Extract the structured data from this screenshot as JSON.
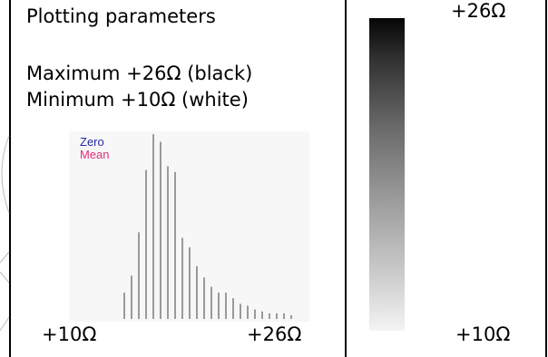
{
  "panel": {
    "title": "Plotting parameters",
    "maximum_line": "Maximum +26Ω (black)",
    "minimum_line": "Minimum +10Ω (white)"
  },
  "histogram": {
    "legend_zero": "Zero",
    "legend_mean": "Mean",
    "x_min_label": "+10Ω",
    "x_max_label": "+26Ω"
  },
  "colorbar": {
    "top_label": "+26Ω",
    "bottom_label": "+10Ω",
    "top_color": "#050505",
    "bottom_color": "#f4f4f4"
  },
  "chart_data": {
    "type": "bar",
    "x_range": [
      10,
      26
    ],
    "x_unit": "Ω",
    "values": [
      0.14,
      0.23,
      0.46,
      0.79,
      0.98,
      0.94,
      0.81,
      0.78,
      0.43,
      0.38,
      0.28,
      0.22,
      0.17,
      0.14,
      0.14,
      0.11,
      0.08,
      0.07,
      0.05,
      0.04,
      0.03,
      0.03,
      0.03,
      0.02
    ],
    "grid": false,
    "colors": {
      "bars": "#9a9a9a",
      "zero_legend": "#2a2aa6",
      "mean_legend": "#e0307a"
    }
  }
}
